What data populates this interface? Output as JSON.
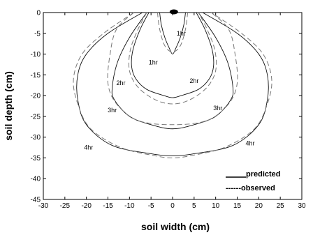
{
  "chart_data": {
    "type": "line",
    "xlabel": "soil width (cm)",
    "ylabel": "soil depth (cm)",
    "xlim": [
      -30,
      30
    ],
    "ylim": [
      -45,
      0
    ],
    "xticks": [
      -30,
      -25,
      -20,
      -15,
      -10,
      -5,
      0,
      5,
      10,
      15,
      20,
      25,
      30
    ],
    "yticks": [
      0,
      -5,
      -10,
      -15,
      -20,
      -25,
      -30,
      -35,
      -40,
      -45
    ],
    "source_marker": {
      "x": 0.3,
      "y": 0
    },
    "legend": {
      "position": "bottom-right",
      "entries": [
        {
          "label": "predicted",
          "style": "solid"
        },
        {
          "label": "------observed",
          "style": "dashed"
        }
      ]
    },
    "series": [
      {
        "name": "predicted",
        "contour": "1hr",
        "style": "solid",
        "x": [
          -3,
          -2.6,
          -1.8,
          -0.8,
          0,
          0.8,
          1.8,
          2.6,
          3
        ],
        "y": [
          0,
          -3,
          -6,
          -8.5,
          -10,
          -8.5,
          -6,
          -3,
          0
        ]
      },
      {
        "name": "predicted",
        "contour": "2hr",
        "style": "solid",
        "x": [
          -5.5,
          -7.5,
          -9.2,
          -9.5,
          -8.5,
          -6,
          -2,
          0,
          2,
          6,
          8.5,
          9.5,
          9.2,
          7.5,
          5.5
        ],
        "y": [
          0,
          -4,
          -9,
          -13,
          -16,
          -18.5,
          -20,
          -20.5,
          -20,
          -18.5,
          -16,
          -13,
          -9,
          -4,
          0
        ]
      },
      {
        "name": "predicted",
        "contour": "3hr",
        "style": "solid",
        "x": [
          -6,
          -10,
          -12.8,
          -14,
          -13.5,
          -10,
          -5,
          0,
          5,
          10,
          13.5,
          14,
          12.8,
          10,
          6
        ],
        "y": [
          0,
          -6,
          -12,
          -18,
          -21,
          -25,
          -27,
          -28,
          -27,
          -25,
          -21,
          -18,
          -12,
          -6,
          0
        ]
      },
      {
        "name": "predicted",
        "contour": "4hr",
        "style": "solid",
        "x": [
          -7,
          -15,
          -20,
          -22,
          -22,
          -20,
          -14,
          -5,
          0,
          5,
          14,
          20,
          22,
          22,
          20,
          15,
          7
        ],
        "y": [
          0,
          -5,
          -10,
          -15,
          -21,
          -27,
          -32,
          -34,
          -34.5,
          -34,
          -32,
          -27,
          -21,
          -15,
          -10,
          -5,
          0
        ]
      },
      {
        "name": "observed",
        "contour": "1hr",
        "style": "dashed",
        "x": [
          -3.5,
          -3,
          -1.8,
          0,
          1.8,
          3,
          3.5
        ],
        "y": [
          0,
          -4,
          -8,
          -9.5,
          -8,
          -4,
          0
        ]
      },
      {
        "name": "observed",
        "contour": "2hr",
        "style": "dashed",
        "x": [
          -6,
          -8,
          -9.8,
          -10,
          -8,
          -4,
          0,
          4,
          8,
          10,
          9.8,
          8,
          6
        ],
        "y": [
          0,
          -4,
          -9,
          -14,
          -18,
          -21,
          -22,
          -21,
          -18,
          -14,
          -9,
          -4,
          0
        ]
      },
      {
        "name": "observed",
        "contour": "3hr",
        "style": "dashed",
        "x": [
          -9,
          -13,
          -14.5,
          -15,
          -13,
          -8,
          0,
          8,
          13,
          15,
          14.5,
          13,
          9
        ],
        "y": [
          0,
          -4,
          -10,
          -17,
          -22,
          -26,
          -27,
          -26,
          -22,
          -17,
          -10,
          -4,
          0
        ]
      },
      {
        "name": "observed",
        "contour": "4hr",
        "style": "dashed",
        "x": [
          -9,
          -16,
          -21,
          -23,
          -22,
          -19,
          -12,
          -4,
          0,
          4,
          12,
          19,
          22,
          23,
          21,
          16,
          9
        ],
        "y": [
          0,
          -5,
          -10,
          -16,
          -22,
          -28,
          -32.5,
          -34.5,
          -35,
          -34.5,
          -32.5,
          -28,
          -22,
          -16,
          -10,
          -5,
          0
        ]
      }
    ],
    "annotations": [
      {
        "text": "1hr",
        "x": 2,
        "y": -5.5
      },
      {
        "text": "1hr",
        "x": -4.5,
        "y": -12.5
      },
      {
        "text": "2hr",
        "x": -12,
        "y": -17.5
      },
      {
        "text": "2hr",
        "x": 5,
        "y": -17
      },
      {
        "text": "3hr",
        "x": -14,
        "y": -24
      },
      {
        "text": "3hr",
        "x": 10.5,
        "y": -23.5
      },
      {
        "text": "4hr",
        "x": -19.5,
        "y": -33
      },
      {
        "text": "4hr",
        "x": 18,
        "y": -32
      }
    ]
  }
}
